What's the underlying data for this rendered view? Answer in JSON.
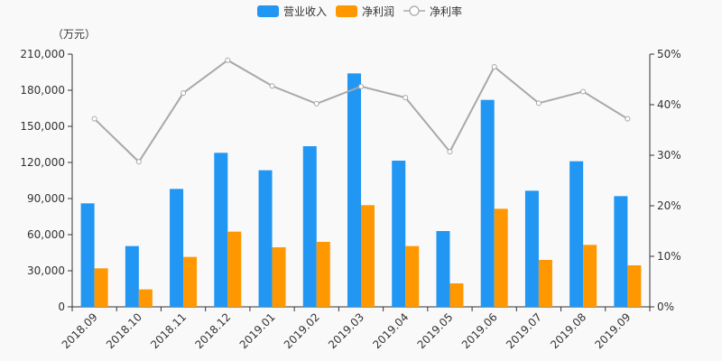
{
  "chart_data": {
    "type": "bar",
    "unit_label": "（万元）",
    "categories": [
      "2018.09",
      "2018.10",
      "2018.11",
      "2018.12",
      "2019.01",
      "2019.02",
      "2019.03",
      "2019.04",
      "2019.05",
      "2019.06",
      "2019.07",
      "2019.08",
      "2019.09"
    ],
    "series": [
      {
        "name": "营业收入",
        "type": "bar",
        "axis": "left",
        "color": "#2196f3",
        "values": [
          86000,
          50500,
          98000,
          128000,
          113500,
          133500,
          194000,
          121500,
          63000,
          172000,
          96500,
          121000,
          92000
        ]
      },
      {
        "name": "净利润",
        "type": "bar",
        "axis": "left",
        "color": "#ff9800",
        "values": [
          32000,
          14500,
          41500,
          62500,
          49500,
          54000,
          84500,
          50500,
          19500,
          81500,
          39000,
          51500,
          34500
        ]
      },
      {
        "name": "净利率",
        "type": "line",
        "axis": "right",
        "color": "#a8a8a8",
        "values": [
          37.2,
          28.7,
          42.3,
          48.8,
          43.7,
          40.2,
          43.6,
          41.4,
          30.7,
          47.5,
          40.3,
          42.6,
          37.2
        ]
      }
    ],
    "y_left": {
      "min": 0,
      "max": 210000,
      "ticks": [
        0,
        30000,
        60000,
        90000,
        120000,
        150000,
        180000,
        210000
      ],
      "tick_labels": [
        "0",
        "30,000",
        "60,000",
        "90,000",
        "120,000",
        "150,000",
        "180,000",
        "210,000"
      ]
    },
    "y_right": {
      "min": 0,
      "max": 50,
      "ticks": [
        0,
        10,
        20,
        30,
        40,
        50
      ],
      "tick_labels": [
        "0%",
        "10%",
        "20%",
        "30%",
        "40%",
        "50%"
      ]
    },
    "legend_position": "top-center",
    "grid": false
  }
}
